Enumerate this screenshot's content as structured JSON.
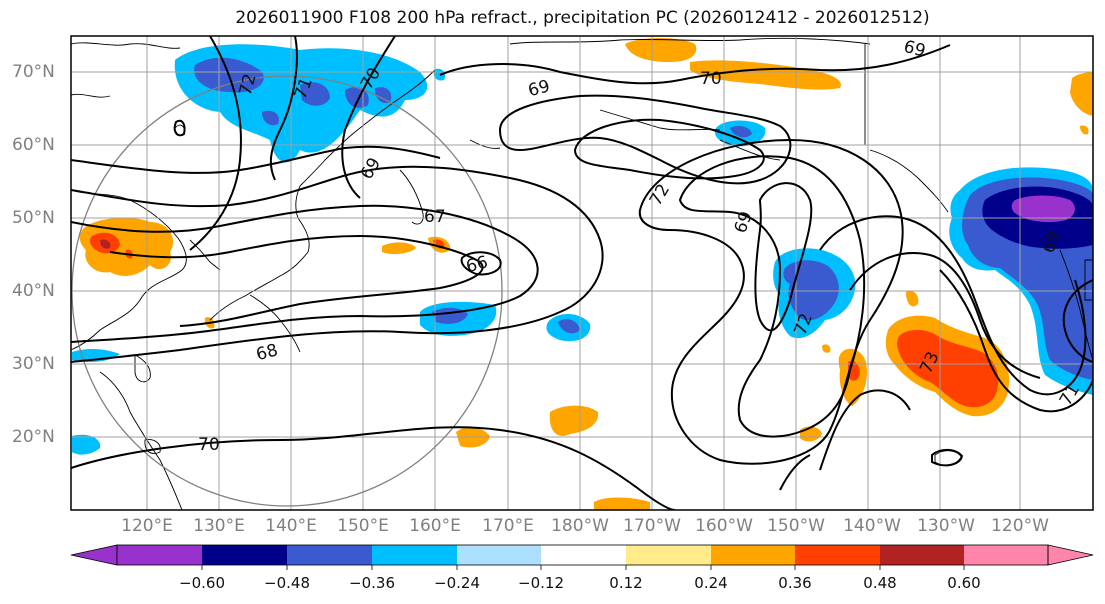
{
  "title": "2026011900 F108 200 hPa refract., precipitation PC (2026012412 - 2026012512)",
  "lat_labels": [
    "70°N",
    "60°N",
    "50°N",
    "40°N",
    "30°N",
    "20°N"
  ],
  "lon_labels": [
    "120°E",
    "130°E",
    "140°E",
    "150°E",
    "160°E",
    "170°E",
    "180°W",
    "170°W",
    "160°W",
    "150°W",
    "140°W",
    "130°W",
    "120°W"
  ],
  "contour_labels": [
    "72",
    "71",
    "70",
    "69",
    "69",
    "70",
    "69",
    "67",
    "66",
    "68",
    "70",
    "72",
    "69",
    "72",
    "73",
    "71",
    "69"
  ],
  "colorbar": {
    "tick_labels": [
      "−0.60",
      "−0.48",
      "−0.36",
      "−0.24",
      "−0.12",
      "0.12",
      "0.24",
      "0.36",
      "0.48",
      "0.60"
    ],
    "colors": [
      "#9932CC",
      "#00008B",
      "#3A5BCF",
      "#00BFFF",
      "#ADDFFF",
      "#FFFFFF",
      "#FFEB8A",
      "#FFA500",
      "#FF4000",
      "#B22222",
      "#FF85AA"
    ]
  }
}
